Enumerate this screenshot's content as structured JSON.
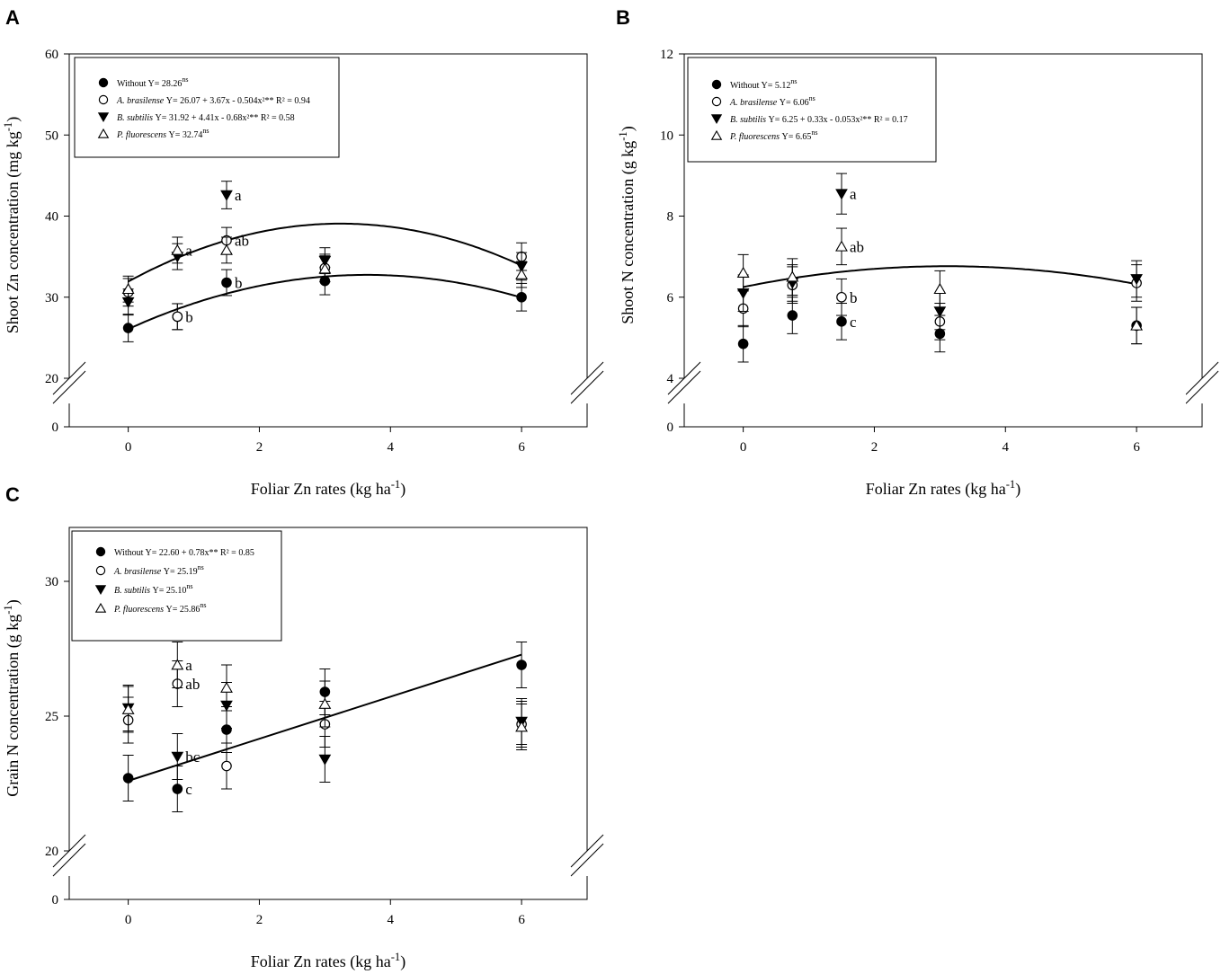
{
  "chart_data": [
    {
      "id": "A",
      "type": "scatter",
      "panel_label": "A",
      "xlabel": "Foliar Zn rates (kg ha",
      "xlabel_sup": "-1",
      "xlabel_tail": ")",
      "ylabel": "Shoot Zn concentration (mg kg",
      "ylabel_sup": "-1",
      "ylabel_tail": ")",
      "xlim": [
        -0.9,
        7.0
      ],
      "xticks": [
        0,
        2,
        4,
        6
      ],
      "ylim": [
        20,
        60
      ],
      "yticks": [
        20,
        30,
        40,
        50,
        60
      ],
      "y_break_label": "0",
      "legend": [
        {
          "marker": "filled-circle",
          "name": "Without",
          "eq": "Y= 28.26",
          "sup": "ns",
          "tail": ""
        },
        {
          "marker": "open-circle",
          "name": "A. brasilense",
          "eq": "Y= 26.07 + 3.67x - 0.504x²** R² = 0.94",
          "sup": "",
          "tail": ""
        },
        {
          "marker": "filled-triangle-down",
          "name": "B. subtilis",
          "eq": "Y= 31.92 + 4.41x - 0.68x²** R² = 0.58",
          "sup": "",
          "tail": ""
        },
        {
          "marker": "open-triangle-up",
          "name": "P. fluorescens",
          "eq": "Y= 32.74",
          "sup": "ns",
          "tail": ""
        }
      ],
      "series": [
        {
          "name": "Without",
          "marker": "filled-circle",
          "x": [
            0,
            0.75,
            1.5,
            3,
            6
          ],
          "y": [
            26.2,
            27.6,
            31.8,
            32.0,
            30.0
          ],
          "err": [
            1.7,
            1.6,
            1.6,
            1.7,
            1.7
          ]
        },
        {
          "name": "A. brasilense",
          "marker": "open-circle",
          "x": [
            0,
            0.75,
            1.5,
            3,
            6
          ],
          "y": [
            30.6,
            27.6,
            37.0,
            33.6,
            35.0
          ],
          "err": [
            1.7,
            1.6,
            1.6,
            1.7,
            1.7
          ]
        },
        {
          "name": "B. subtilis",
          "marker": "filled-triangle-down",
          "x": [
            0,
            0.75,
            1.5,
            3,
            6
          ],
          "y": [
            29.4,
            35.0,
            42.6,
            34.5,
            33.8
          ],
          "err": [
            1.6,
            1.6,
            1.7,
            1.6,
            1.7
          ]
        },
        {
          "name": "P. fluorescens",
          "marker": "open-triangle-up",
          "x": [
            0,
            0.75,
            1.5,
            3,
            6
          ],
          "y": [
            31.0,
            35.8,
            35.8,
            33.5,
            32.8
          ],
          "err": [
            1.6,
            1.6,
            1.6,
            1.6,
            1.6
          ]
        }
      ],
      "curves": [
        {
          "name": "A. brasilense fit",
          "a": 26.07,
          "b": 3.67,
          "c": -0.504
        },
        {
          "name": "B. subtilis fit",
          "a": 31.92,
          "b": 4.41,
          "c": -0.68
        }
      ],
      "annotations": [
        {
          "x": 1.5,
          "y": 42.6,
          "text": "a"
        },
        {
          "x": 0.75,
          "y": 35.8,
          "text": "a"
        },
        {
          "x": 1.5,
          "y": 37.0,
          "text": "ab"
        },
        {
          "x": 1.5,
          "y": 31.8,
          "text": "b"
        },
        {
          "x": 0.75,
          "y": 27.6,
          "text": "b"
        }
      ]
    },
    {
      "id": "B",
      "type": "scatter",
      "panel_label": "B",
      "xlabel": "Foliar Zn rates (kg ha",
      "xlabel_sup": "-1",
      "xlabel_tail": ")",
      "ylabel": "Shoot N concentration (g kg",
      "ylabel_sup": "-1",
      "ylabel_tail": ")",
      "xlim": [
        -0.9,
        7.0
      ],
      "xticks": [
        0,
        2,
        4,
        6
      ],
      "ylim": [
        4,
        12
      ],
      "yticks": [
        4,
        6,
        8,
        10,
        12
      ],
      "y_break_label": "0",
      "legend": [
        {
          "marker": "filled-circle",
          "name": "Without",
          "eq": "Y= 5.12",
          "sup": "ns",
          "tail": ""
        },
        {
          "marker": "open-circle",
          "name": "A. brasilense",
          "eq": "Y= 6.06",
          "sup": "ns",
          "tail": ""
        },
        {
          "marker": "filled-triangle-down",
          "name": "B. subtilis",
          "eq": "Y= 6.25 + 0.33x - 0.053x²** R² = 0.17",
          "sup": "",
          "tail": ""
        },
        {
          "marker": "open-triangle-up",
          "name": "P. fluorescens",
          "eq": "Y= 6.65",
          "sup": "ns",
          "tail": ""
        }
      ],
      "series": [
        {
          "name": "Without",
          "marker": "filled-circle",
          "x": [
            0,
            0.75,
            1.5,
            3,
            6
          ],
          "y": [
            4.85,
            5.55,
            5.4,
            5.1,
            5.3
          ],
          "err": [
            0.45,
            0.45,
            0.45,
            0.45,
            0.45
          ]
        },
        {
          "name": "A. brasilense",
          "marker": "open-circle",
          "x": [
            0,
            0.75,
            1.5,
            3,
            6
          ],
          "y": [
            5.72,
            6.3,
            6.0,
            5.4,
            6.35
          ],
          "err": [
            0.45,
            0.45,
            0.45,
            0.45,
            0.45
          ]
        },
        {
          "name": "B. subtilis",
          "marker": "filled-triangle-down",
          "x": [
            0,
            0.75,
            1.5,
            3,
            6
          ],
          "y": [
            6.1,
            6.35,
            8.55,
            5.65,
            6.45
          ],
          "err": [
            0.45,
            0.45,
            0.5,
            0.45,
            0.45
          ]
        },
        {
          "name": "P. fluorescens",
          "marker": "open-triangle-up",
          "x": [
            0,
            0.75,
            1.5,
            3,
            6
          ],
          "y": [
            6.6,
            6.5,
            7.25,
            6.2,
            5.3
          ],
          "err": [
            0.45,
            0.45,
            0.45,
            0.45,
            0.45
          ]
        }
      ],
      "curves": [
        {
          "name": "B. subtilis fit",
          "a": 6.25,
          "b": 0.33,
          "c": -0.053
        }
      ],
      "annotations": [
        {
          "x": 1.5,
          "y": 8.55,
          "text": "a"
        },
        {
          "x": 1.5,
          "y": 7.25,
          "text": "ab"
        },
        {
          "x": 1.5,
          "y": 6.0,
          "text": "b"
        },
        {
          "x": 1.5,
          "y": 5.4,
          "text": "c"
        }
      ]
    },
    {
      "id": "C",
      "type": "scatter",
      "panel_label": "C",
      "xlabel": "Foliar Zn rates (kg ha",
      "xlabel_sup": "-1",
      "xlabel_tail": ")",
      "ylabel": "Grain N concentration (g kg",
      "ylabel_sup": "-1",
      "ylabel_tail": ")",
      "xlim": [
        -0.9,
        7.0
      ],
      "xticks": [
        0,
        2,
        4,
        6
      ],
      "ylim": [
        20,
        32
      ],
      "yticks": [
        20,
        25,
        30
      ],
      "y_break_label": "0",
      "legend": [
        {
          "marker": "filled-circle",
          "name": "Without",
          "eq": "Y= 22.60 + 0.78x** R² = 0.85",
          "sup": "",
          "tail": ""
        },
        {
          "marker": "open-circle",
          "name": "A. brasilense",
          "eq": "Y= 25.19",
          "sup": "ns",
          "tail": ""
        },
        {
          "marker": "filled-triangle-down",
          "name": "B. subtilis",
          "eq": "Y= 25.10",
          "sup": "ns",
          "tail": ""
        },
        {
          "marker": "open-triangle-up",
          "name": "P. fluorescens",
          "eq": "Y= 25.86",
          "sup": "ns",
          "tail": ""
        }
      ],
      "series": [
        {
          "name": "Without",
          "marker": "filled-circle",
          "x": [
            0,
            0.75,
            1.5,
            3,
            6
          ],
          "y": [
            22.7,
            22.3,
            24.5,
            25.9,
            26.9
          ],
          "err": [
            0.85,
            0.85,
            0.85,
            0.85,
            0.85
          ]
        },
        {
          "name": "A. brasilense",
          "marker": "open-circle",
          "x": [
            0,
            0.75,
            1.5,
            3,
            6
          ],
          "y": [
            24.85,
            26.2,
            23.15,
            24.7,
            24.7
          ],
          "err": [
            0.85,
            0.85,
            0.85,
            0.85,
            0.85
          ]
        },
        {
          "name": "B. subtilis",
          "marker": "filled-triangle-down",
          "x": [
            0,
            0.75,
            1.5,
            3,
            6
          ],
          "y": [
            25.3,
            23.5,
            25.4,
            23.4,
            24.8
          ],
          "err": [
            0.85,
            0.85,
            0.85,
            0.85,
            0.85
          ]
        },
        {
          "name": "P. fluorescens",
          "marker": "open-triangle-up",
          "x": [
            0,
            0.75,
            1.5,
            3,
            6
          ],
          "y": [
            25.25,
            26.9,
            26.05,
            25.45,
            24.6
          ],
          "err": [
            0.85,
            0.85,
            0.85,
            0.85,
            0.85
          ]
        }
      ],
      "lines": [
        {
          "name": "Without fit",
          "a": 22.6,
          "b": 0.78,
          "x0": 0,
          "x1": 6
        }
      ],
      "annotations": [
        {
          "x": 0.75,
          "y": 26.9,
          "text": "a"
        },
        {
          "x": 0.75,
          "y": 26.2,
          "text": "ab"
        },
        {
          "x": 0.75,
          "y": 23.5,
          "text": "bc"
        },
        {
          "x": 0.75,
          "y": 22.3,
          "text": "c"
        }
      ]
    }
  ]
}
